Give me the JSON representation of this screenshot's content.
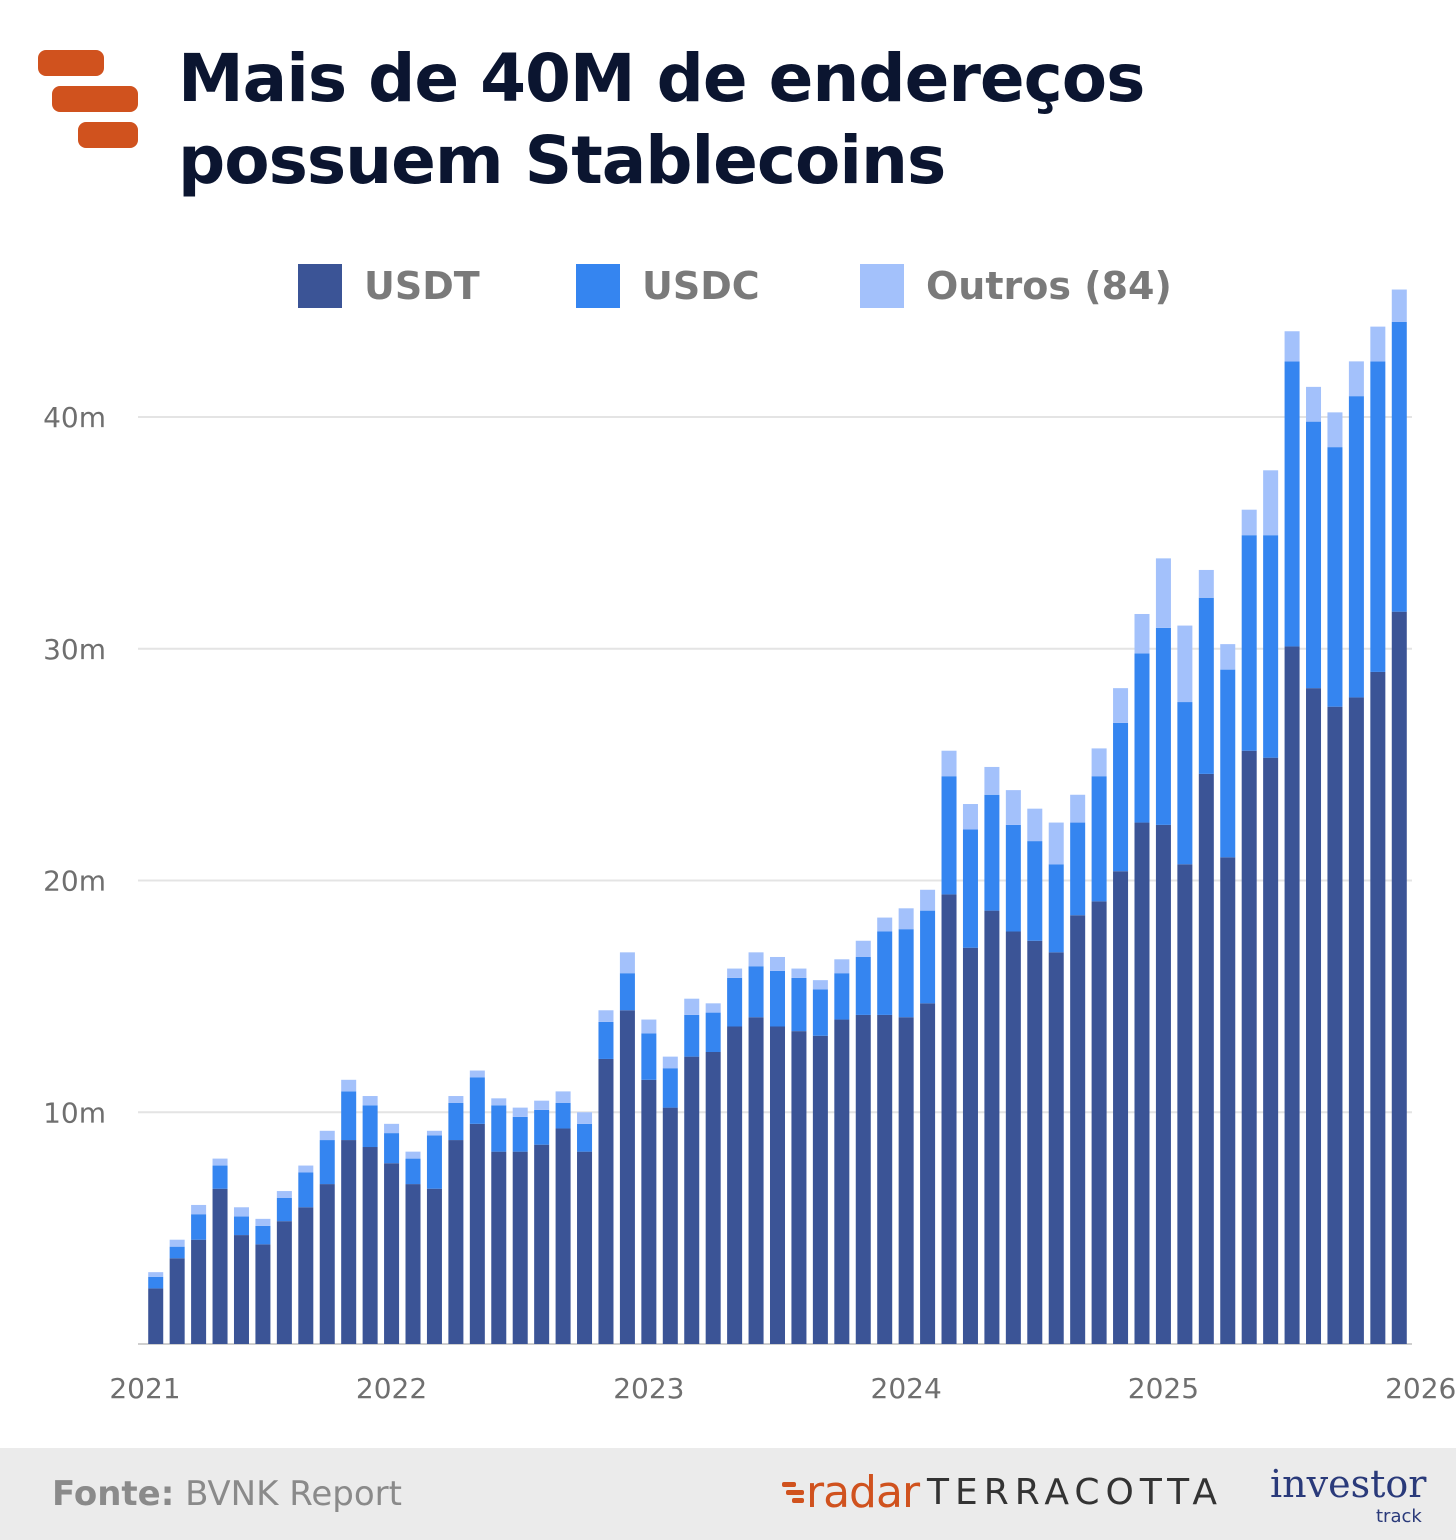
{
  "header": {
    "title_line1": "Mais de 40M de endereços",
    "title_line2": "possuem Stablecoins"
  },
  "legend": [
    {
      "label": "USDT",
      "color": "#3b5496"
    },
    {
      "label": "USDC",
      "color": "#3585f0"
    },
    {
      "label": "Outros (84)",
      "color": "#a3c1fb"
    }
  ],
  "footer": {
    "source_label": "Fonte:",
    "source_value": "BVNK Report",
    "brand_radar": "radar",
    "brand_terracotta": "TERRACOTTA",
    "brand_investor": "investor",
    "brand_track": "track"
  },
  "chart_data": {
    "type": "bar",
    "stacked": true,
    "title": "Mais de 40M de endereços possuem Stablecoins",
    "xlabel": "",
    "ylabel": "",
    "ylim": [
      0,
      46
    ],
    "y_ticks": [
      {
        "value": 10,
        "label": "10m"
      },
      {
        "value": 20,
        "label": "20m"
      },
      {
        "value": 30,
        "label": "30m"
      },
      {
        "value": 40,
        "label": "40m"
      }
    ],
    "x_tick_labels": [
      {
        "label": "2021",
        "index": -0.5
      },
      {
        "label": "2022",
        "index": 11
      },
      {
        "label": "2023",
        "index": 23
      },
      {
        "label": "2024",
        "index": 35
      },
      {
        "label": "2025",
        "index": 47
      },
      {
        "label": "2026",
        "index": 59
      }
    ],
    "legend_position": "top",
    "grid": true,
    "series": [
      {
        "name": "USDT",
        "color": "#3b5496",
        "values": [
          2.4,
          3.7,
          4.5,
          6.7,
          4.7,
          4.3,
          5.3,
          5.9,
          6.9,
          8.8,
          8.5,
          7.8,
          6.9,
          6.7,
          8.8,
          9.5,
          8.3,
          8.3,
          8.6,
          9.3,
          8.3,
          12.3,
          14.4,
          11.4,
          10.2,
          12.4,
          12.6,
          13.7,
          14.1,
          13.7,
          13.5,
          13.3,
          14.0,
          14.2,
          14.2,
          14.1,
          14.7,
          19.4,
          17.1,
          18.7,
          17.8,
          17.4,
          16.9,
          18.5,
          19.1,
          20.4,
          22.5,
          22.4,
          20.7,
          24.6,
          21.0,
          25.6,
          25.3,
          30.1,
          28.3,
          27.5,
          27.9,
          29.0,
          31.6
        ]
      },
      {
        "name": "USDC",
        "color": "#3585f0",
        "values": [
          0.5,
          0.5,
          1.1,
          1.0,
          0.8,
          0.8,
          1.0,
          1.5,
          1.9,
          2.1,
          1.8,
          1.3,
          1.1,
          2.3,
          1.6,
          2.0,
          2.0,
          1.5,
          1.5,
          1.1,
          1.2,
          1.6,
          1.6,
          2.0,
          1.7,
          1.8,
          1.7,
          2.1,
          2.2,
          2.4,
          2.3,
          2.0,
          2.0,
          2.5,
          3.6,
          3.8,
          4.0,
          5.1,
          5.1,
          5.0,
          4.6,
          4.3,
          3.8,
          4.0,
          5.4,
          6.4,
          7.3,
          8.5,
          7.0,
          7.6,
          8.1,
          9.3,
          9.6,
          12.3,
          11.5,
          11.2,
          13.0,
          13.4,
          12.5
        ]
      },
      {
        "name": "Outros (84)",
        "color": "#a3c1fb",
        "values": [
          0.2,
          0.3,
          0.4,
          0.3,
          0.4,
          0.3,
          0.3,
          0.3,
          0.4,
          0.5,
          0.4,
          0.4,
          0.3,
          0.2,
          0.3,
          0.3,
          0.3,
          0.4,
          0.4,
          0.5,
          0.5,
          0.5,
          0.9,
          0.6,
          0.5,
          0.7,
          0.4,
          0.4,
          0.6,
          0.6,
          0.4,
          0.4,
          0.6,
          0.7,
          0.6,
          0.9,
          0.9,
          1.1,
          1.1,
          1.2,
          1.5,
          1.4,
          1.8,
          1.2,
          1.2,
          1.5,
          1.7,
          3.0,
          3.3,
          1.2,
          1.1,
          1.1,
          2.8,
          1.3,
          1.5,
          1.5,
          1.5,
          1.5,
          1.4
        ]
      }
    ]
  }
}
